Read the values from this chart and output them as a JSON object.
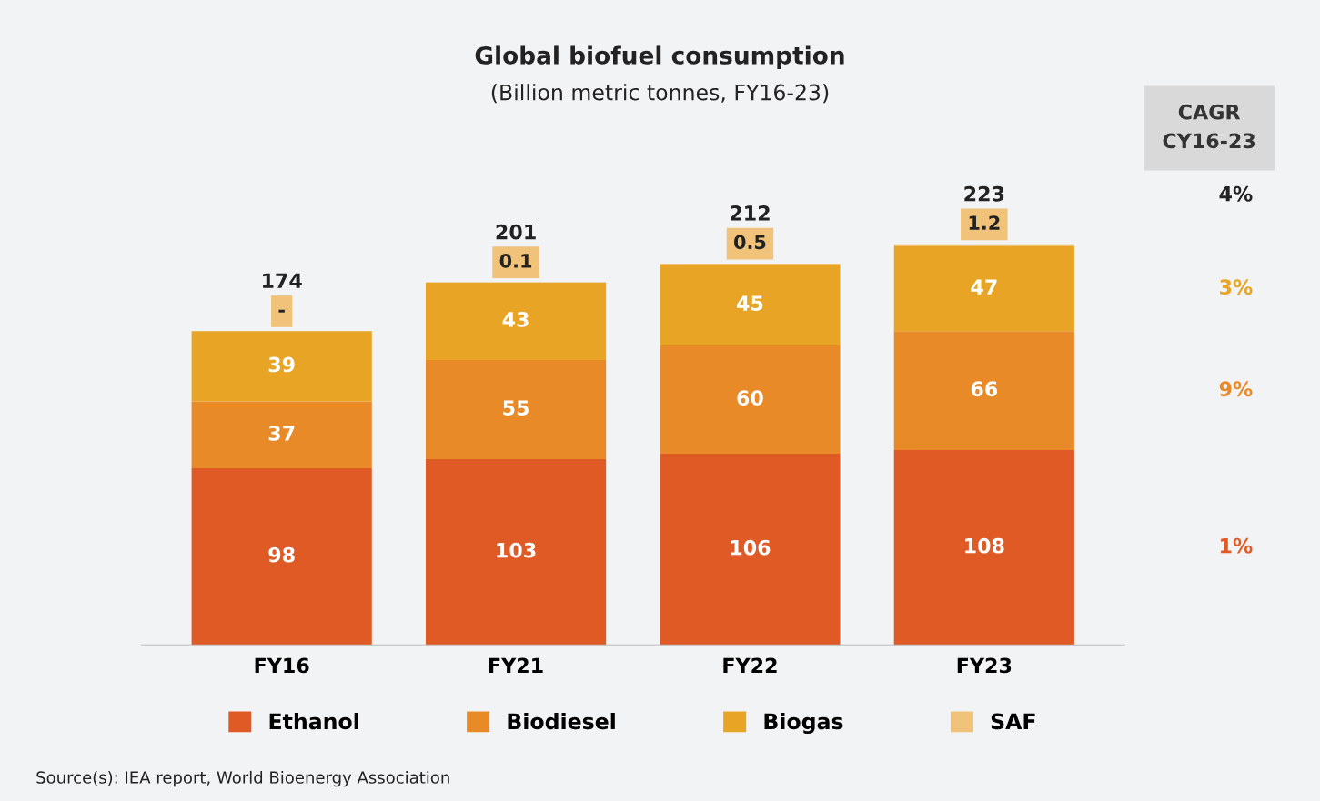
{
  "chart_data": {
    "type": "bar",
    "stacked": true,
    "title": "Global biofuel consumption",
    "subtitle": "(Billion metric tonnes, FY16-23)",
    "categories": [
      "FY16",
      "FY21",
      "FY22",
      "FY23"
    ],
    "series": [
      {
        "name": "Ethanol",
        "color": "#e05a26",
        "values": [
          98,
          103,
          106,
          108
        ],
        "value_labels": [
          "98",
          "103",
          "106",
          "108"
        ]
      },
      {
        "name": "Biodiesel",
        "color": "#e98a28",
        "values": [
          37,
          55,
          60,
          66
        ],
        "value_labels": [
          "37",
          "55",
          "60",
          "66"
        ]
      },
      {
        "name": "Biogas",
        "color": "#e8a525",
        "values": [
          39,
          43,
          45,
          47
        ],
        "value_labels": [
          "39",
          "43",
          "45",
          "47"
        ]
      },
      {
        "name": "SAF",
        "color": "#f0c27a",
        "values": [
          0,
          0.1,
          0.5,
          1.2
        ],
        "value_labels": [
          "-",
          "0.1",
          "0.5",
          "1.2"
        ]
      }
    ],
    "totals": [
      "174",
      "201",
      "212",
      "223"
    ],
    "legend": "bottom",
    "annotations": [
      "CAGR\nCY16-23",
      "4%",
      "3%",
      "9%",
      "1%",
      "Source(s): IEA report, World Bioenergy Association"
    ]
  }
}
